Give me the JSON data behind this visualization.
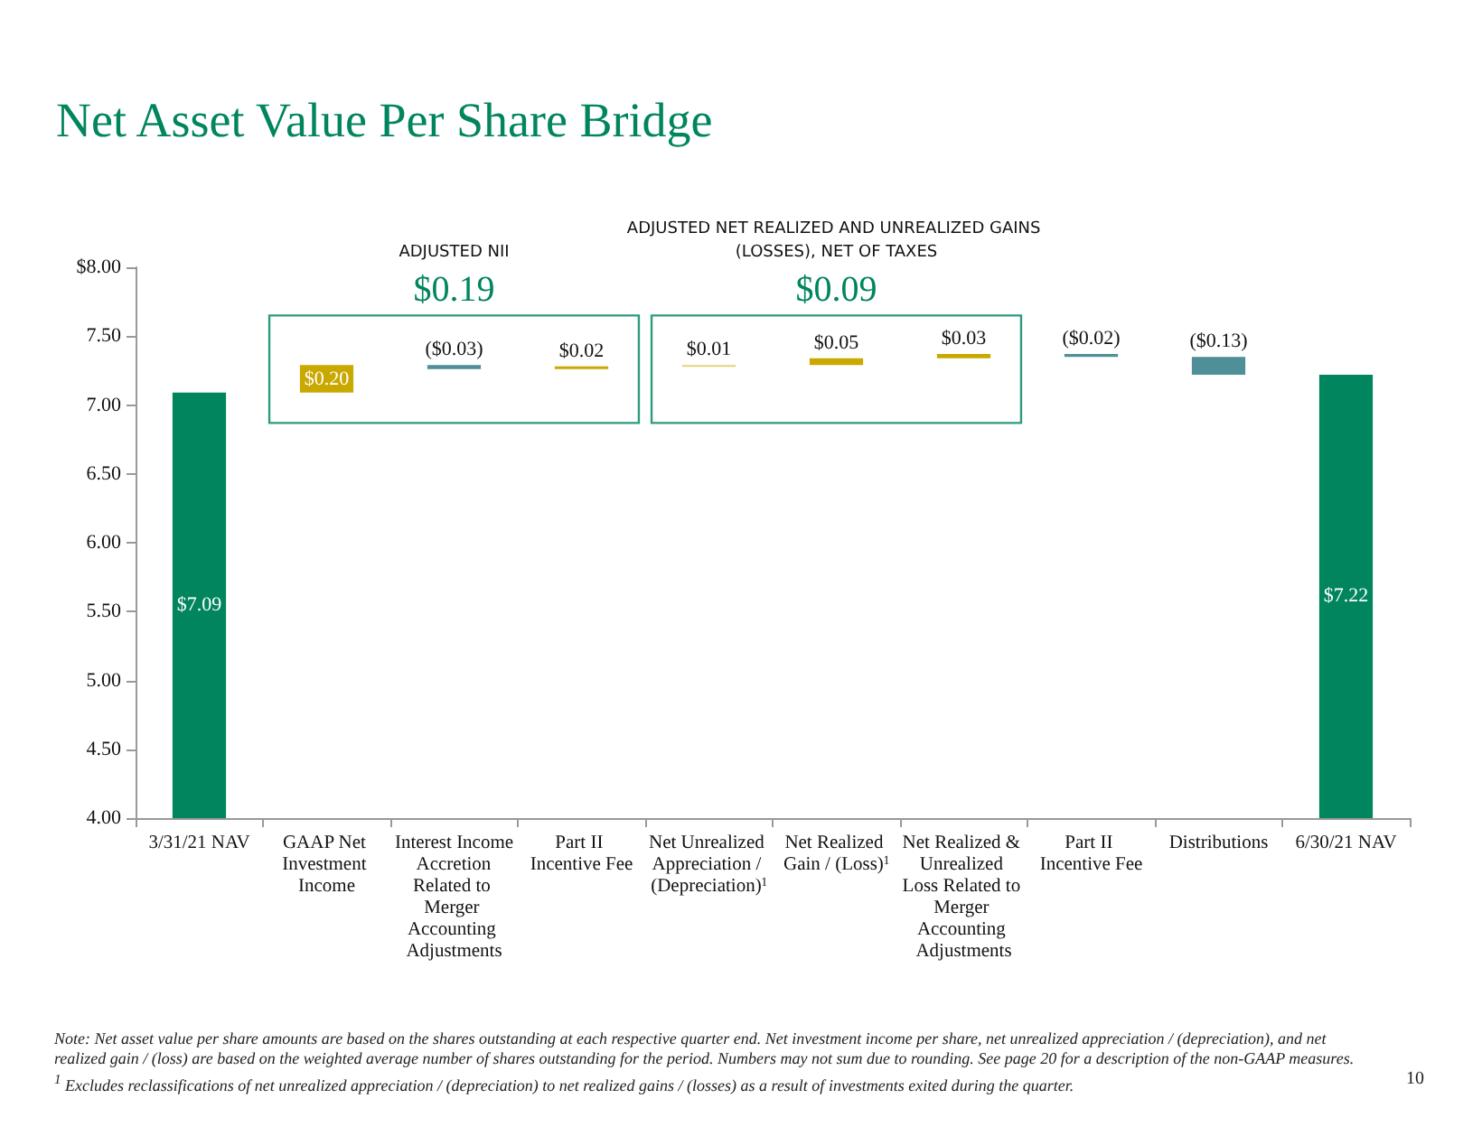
{
  "chart_data": {
    "type": "bar",
    "title": "Net Asset Value Per Share Bridge",
    "categories": [
      "3/31/21 NAV",
      "GAAP Net Investment Income",
      "Interest Income Accretion Related to Merger Accounting Adjustments",
      "Part II Incentive Fee",
      "Net Unrealized Appreciation / (Depreciation)$^{1}$",
      "Net Realized Gain / (Loss)$^{1}$",
      "Net Realized & Unrealized Loss Related to Merger Accounting Adjustments",
      "Part II Incentive Fee",
      "Distributions",
      "6/30/21 NAV"
    ],
    "values": [
      7.09,
      0.2,
      -0.03,
      0.02,
      0.01,
      0.05,
      0.03,
      -0.02,
      -0.13,
      7.22
    ],
    "base": [
      null,
      7.09,
      7.29,
      7.26,
      7.28,
      7.29,
      7.34,
      7.37,
      7.35,
      null
    ],
    "colors": [
      "#00855f",
      "#c9a800",
      "#4e8f98",
      "#c9a800",
      "#e3d27a",
      "#c9a800",
      "#c9a800",
      "#4e8f98",
      "#4e8f98",
      "#00855f"
    ],
    "value_labels": [
      "$7.09",
      "$0.20",
      "($0.03)",
      "$0.02",
      "$0.01",
      "$0.05",
      "$0.03",
      "($0.02)",
      "($0.13)",
      "$7.22"
    ],
    "ylim": [
      4,
      8
    ],
    "yticks": [
      {
        "value": 4,
        "label": "4.00"
      },
      {
        "value": 4.5,
        "label": "4.50"
      },
      {
        "value": 5,
        "label": "5.00"
      },
      {
        "value": 5.5,
        "label": "5.50"
      },
      {
        "value": 6,
        "label": "6.00"
      },
      {
        "value": 6.5,
        "label": "6.50"
      },
      {
        "value": 7,
        "label": "7.00"
      },
      {
        "value": 7.5,
        "label": "7.50"
      },
      {
        "value": 8,
        "label": "$8.00"
      }
    ],
    "grid": false,
    "annotations": [
      "ADJUSTED NII",
      "$0.19",
      "ADJUSTED NET REALIZED AND UNREALIZED GAINS (LOSSES), NET OF TAXES",
      "$0.09",
      "Note:  Net asset value per share amounts are based on the shares outstanding at each respective quarter end. Net investment income per share, net unrealized appreciation / (depreciation), and net realized gain / (loss) are based on the weighted average number of shares outstanding for the period. Numbers may not sum due to rounding. See page 20 for a description of the non-GAAP measures.",
      "$^{1}$ Excludes reclassifications of net unrealized appreciation / (depreciation) to net realized gains / (losses) as a result of investments exited during the quarter.",
      "10"
    ]
  }
}
